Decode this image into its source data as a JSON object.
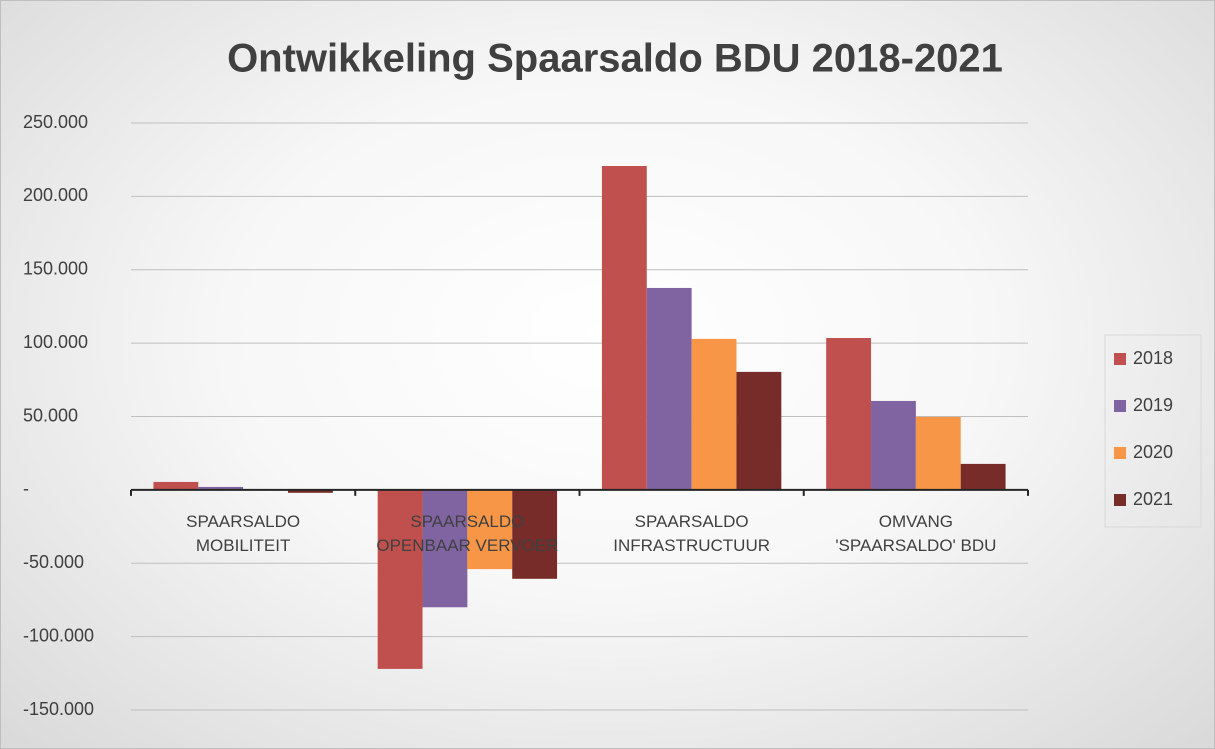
{
  "chart_data": {
    "type": "bar",
    "title": "Ontwikkeling Spaarsaldo BDU 2018-2021",
    "categories": [
      "SPAARSALDO\nMOBILITEIT",
      "SPAARSALDO\nOPENBAAR VERVOER",
      "SPAARSALDO\nINFRASTRUCTUUR",
      "OMVANG\n'SPAARSALDO' BDU"
    ],
    "series": [
      {
        "name": "2018",
        "color": "#c0504d",
        "values": [
          5400,
          -122000,
          220700,
          103500
        ]
      },
      {
        "name": "2019",
        "color": "#8064a2",
        "values": [
          2000,
          -80000,
          137600,
          60600
        ]
      },
      {
        "name": "2020",
        "color": "#f79646",
        "values": [
          0,
          -54000,
          102900,
          49700
        ]
      },
      {
        "name": "2021",
        "color": "#772c2a",
        "values": [
          -2000,
          -60600,
          80400,
          17700
        ]
      }
    ],
    "ylim": [
      -150000,
      250000
    ],
    "yticks": [
      {
        "value": -150000,
        "label": "-150.000"
      },
      {
        "value": -100000,
        "label": "-100.000"
      },
      {
        "value": -50000,
        "label": "-50.000"
      },
      {
        "value": 0,
        "label": "-"
      },
      {
        "value": 50000,
        "label": "50.000"
      },
      {
        "value": 100000,
        "label": "100.000"
      },
      {
        "value": 150000,
        "label": "150.000"
      },
      {
        "value": 200000,
        "label": "200.000"
      },
      {
        "value": 250000,
        "label": "250.000"
      }
    ],
    "grid": true,
    "legend": "right"
  }
}
